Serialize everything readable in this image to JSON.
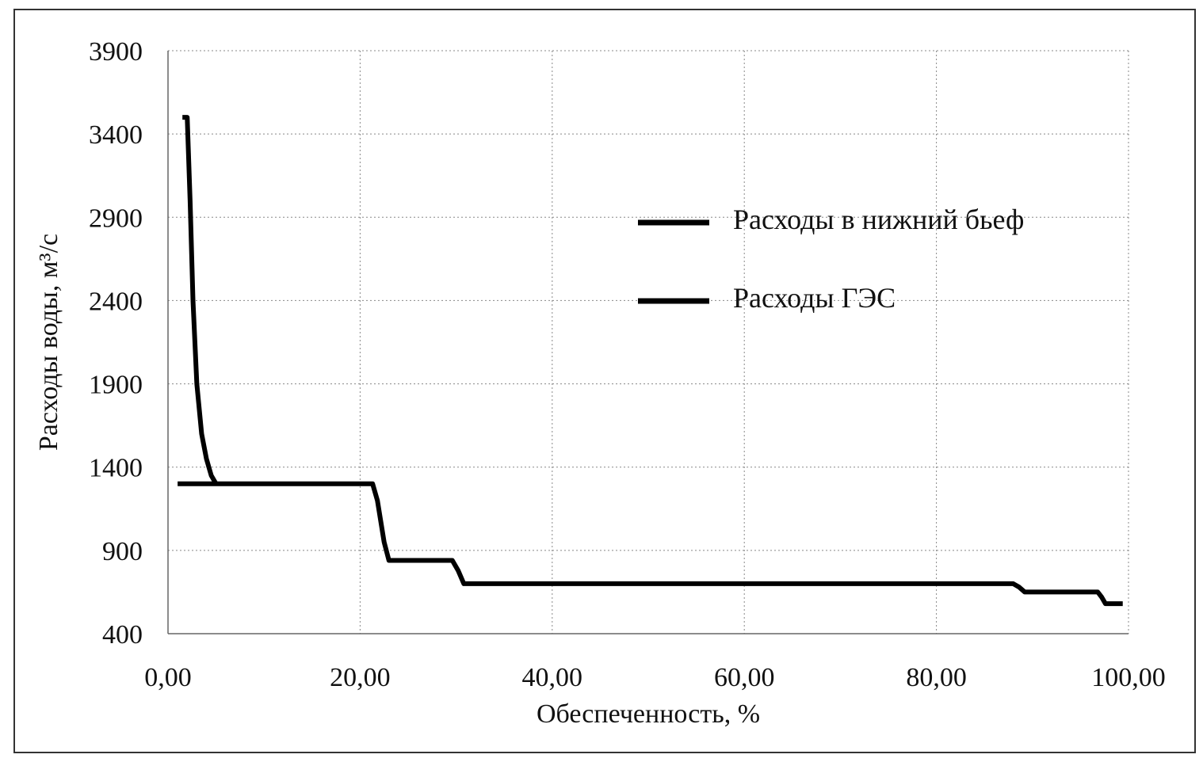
{
  "chart_data": {
    "type": "line",
    "xlabel": "Обеспеченность, %",
    "ylabel": "Расходы воды, м³/с",
    "xlim": [
      0,
      100
    ],
    "xticks": [
      {
        "value": 0,
        "label": "0,00"
      },
      {
        "value": 20,
        "label": "20,00"
      },
      {
        "value": 40,
        "label": "40,00"
      },
      {
        "value": 60,
        "label": "60,00"
      },
      {
        "value": 80,
        "label": "80,00"
      },
      {
        "value": 100,
        "label": "100,00"
      }
    ],
    "ylim": [
      400,
      3900
    ],
    "yticks": [
      400,
      900,
      1400,
      1900,
      2400,
      2900,
      3400,
      3900
    ],
    "grid": true,
    "series": [
      {
        "name": "Расходы в нижний бьеф",
        "color": "#000000",
        "x": [
          1.5,
          2,
          2.3,
          2.6,
          3,
          3.5,
          4,
          4.5,
          5
        ],
        "values": [
          3500,
          3500,
          3000,
          2400,
          1900,
          1600,
          1450,
          1350,
          1300
        ]
      },
      {
        "name": "Расходы ГЭС",
        "color": "#000000",
        "x": [
          1,
          21.3,
          21.8,
          22.5,
          23,
          29.6,
          30.2,
          30.8,
          88,
          88.6,
          89.2,
          96.8,
          97.2,
          97.6,
          99.4
        ],
        "values": [
          1300,
          1300,
          1200,
          950,
          840,
          840,
          780,
          700,
          700,
          680,
          650,
          650,
          620,
          580,
          580
        ]
      }
    ]
  }
}
